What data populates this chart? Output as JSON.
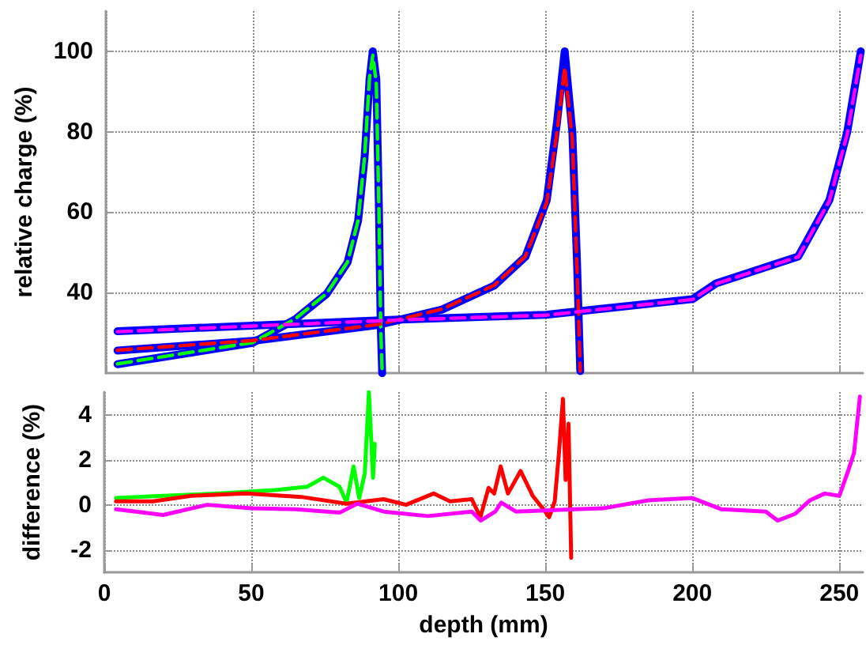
{
  "chart_data": [
    {
      "type": "line",
      "ylabel": "relative charge (%)",
      "xlim": [
        0,
        258
      ],
      "ylim": [
        20,
        110
      ],
      "xticks": [
        0,
        50,
        100,
        150,
        200,
        250
      ],
      "yticks": [
        40,
        60,
        80,
        100
      ],
      "grid": true,
      "tick_labels": "y",
      "series": [
        {
          "color": "#0000ff",
          "line_style": "solid",
          "x": [
            4,
            50,
            64.6,
            75.3,
            82.4,
            86,
            88.2,
            89.9,
            91,
            92.2,
            93.1,
            93.7,
            94.2
          ],
          "values": [
            22.2,
            27.5,
            33.4,
            39.7,
            47.5,
            57.9,
            73.5,
            93,
            100,
            93,
            60.6,
            31.8,
            20
          ]
        },
        {
          "color": "#0000ff",
          "line_style": "solid",
          "x": [
            4,
            50,
            93,
            114.6,
            132.3,
            143,
            150.3,
            153.8,
            156.4,
            159,
            160.6,
            161.7
          ],
          "values": [
            25.6,
            28,
            32,
            35.8,
            41.7,
            48.9,
            63,
            82.5,
            100,
            80,
            47.5,
            20.5
          ]
        },
        {
          "color": "#0000ff",
          "line_style": "solid",
          "x": [
            4,
            50,
            100,
            150,
            200,
            208,
            236,
            246.6,
            252.7,
            257.3
          ],
          "values": [
            30.4,
            31.8,
            33.3,
            34.5,
            38.4,
            42.3,
            49,
            63,
            80,
            100
          ]
        },
        {
          "color": "#00ff00",
          "line_style": "dashed",
          "x": [
            4,
            50,
            64.6,
            75.3,
            82.4,
            86,
            88.2,
            89.9,
            91,
            92.2,
            93.1,
            93.7,
            94.2
          ],
          "values": [
            22.3,
            27.6,
            33.5,
            39.8,
            47.6,
            58,
            73.7,
            93.5,
            99,
            92,
            60,
            31.5,
            20
          ]
        },
        {
          "color": "#ff0000",
          "line_style": "dashed",
          "x": [
            4,
            50,
            93,
            114.6,
            132.3,
            143,
            150.3,
            153.8,
            156.4,
            159,
            160.6,
            161.7
          ],
          "values": [
            25.7,
            28.1,
            32.1,
            35.9,
            41.8,
            49,
            62.5,
            80,
            96,
            78,
            46,
            20.5
          ]
        },
        {
          "color": "#ff00ff",
          "line_style": "dashed",
          "x": [
            4,
            50,
            100,
            150,
            200,
            208,
            236,
            246.6,
            252.7,
            257.3
          ],
          "values": [
            30.3,
            31.7,
            33.2,
            34.4,
            38.3,
            42.2,
            48.9,
            62.8,
            79.5,
            99
          ]
        }
      ]
    },
    {
      "type": "line",
      "xlabel": "depth (mm)",
      "ylabel": "difference (%)",
      "xlim": [
        0,
        258
      ],
      "ylim": [
        -3,
        5
      ],
      "xticks": [
        0,
        50,
        100,
        150,
        200,
        250
      ],
      "yticks": [
        -2,
        0,
        2,
        4
      ],
      "grid": true,
      "series": [
        {
          "color": "#00ff00",
          "line_style": "solid",
          "x": [
            4,
            20,
            39,
            58,
            69,
            74.5,
            80,
            82.4,
            84.8,
            86.7,
            88.6,
            90,
            91.4,
            92
          ],
          "values": [
            0.3,
            0.4,
            0.5,
            0.65,
            0.8,
            1.2,
            0.8,
            0.1,
            1.7,
            0.3,
            1.4,
            5,
            1.2,
            2.7
          ]
        },
        {
          "color": "#ff0000",
          "line_style": "solid",
          "x": [
            4,
            16.5,
            29.6,
            48.3,
            67,
            82.4,
            95,
            102.6,
            112,
            117.6,
            125,
            127.9,
            130.7,
            132.6,
            134.8,
            137.3,
            141.6,
            145.7,
            149.4,
            151.3,
            153.2,
            154.7,
            156,
            156.9,
            157.9,
            158.8
          ],
          "values": [
            0.15,
            0.15,
            0.4,
            0.5,
            0.35,
            0.05,
            0.25,
            0,
            0.5,
            0.15,
            0.25,
            -0.55,
            0.75,
            0.5,
            1.7,
            0.5,
            1.5,
            0.4,
            -0.2,
            -0.55,
            0.15,
            2.4,
            4.7,
            1.1,
            3.6,
            -2.35
          ]
        },
        {
          "color": "#ff00ff",
          "line_style": "solid",
          "x": [
            4,
            20,
            35,
            50,
            65,
            80,
            86,
            95,
            110,
            125,
            128,
            133,
            135,
            140,
            160,
            170,
            185,
            200,
            210,
            225,
            229,
            235,
            240,
            245,
            250,
            253,
            255,
            257
          ],
          "values": [
            -0.2,
            -0.45,
            0,
            -0.15,
            -0.2,
            -0.35,
            0.05,
            -0.3,
            -0.5,
            -0.3,
            -0.7,
            -0.3,
            0.1,
            -0.3,
            -0.2,
            -0.15,
            0.2,
            0.3,
            -0.2,
            -0.3,
            -0.7,
            -0.4,
            0.2,
            0.5,
            0.4,
            1.5,
            2.3,
            4.8
          ]
        }
      ]
    }
  ]
}
